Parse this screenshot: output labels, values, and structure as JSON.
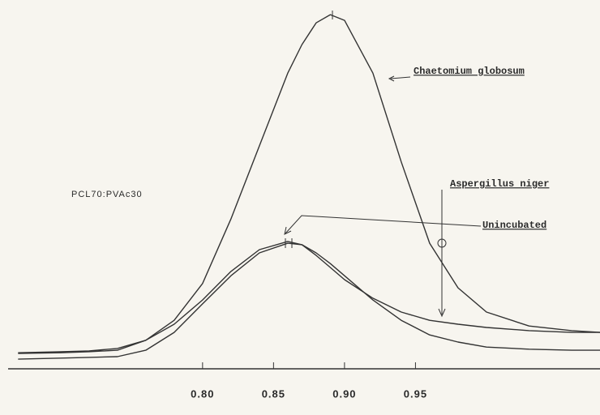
{
  "chart_data": {
    "type": "line",
    "annotation": "PCL70:PVAc30",
    "x": [
      0.67,
      0.7,
      0.72,
      0.74,
      0.76,
      0.78,
      0.8,
      0.82,
      0.84,
      0.86,
      0.87,
      0.88,
      0.89,
      0.9,
      0.92,
      0.94,
      0.96,
      0.98,
      1.0,
      1.03,
      1.06,
      1.08
    ],
    "series": [
      {
        "name": "Chaetomium  globosum",
        "color": "#333333",
        "values": [
          4.5,
          4.8,
          5.0,
          5.7,
          8.0,
          13.6,
          23.9,
          42.0,
          62.5,
          82.9,
          90.9,
          97.0,
          99.3,
          97.7,
          82.9,
          58.0,
          35.2,
          22.7,
          15.9,
          12.0,
          10.7,
          10.2
        ]
      },
      {
        "name": "Aspergillus  niger",
        "color": "#333333",
        "values": [
          4.3,
          4.5,
          4.8,
          5.2,
          8.0,
          12.5,
          19.3,
          27.3,
          33.4,
          35.7,
          34.8,
          31.8,
          28.4,
          25.0,
          19.8,
          15.9,
          13.6,
          12.5,
          11.6,
          10.7,
          10.2,
          10.2
        ]
      },
      {
        "name": "Unincubated",
        "color": "#333333",
        "values": [
          2.7,
          3.0,
          3.2,
          3.4,
          5.2,
          10.2,
          18.2,
          26.1,
          32.5,
          35.2,
          34.8,
          32.5,
          29.5,
          26.1,
          19.3,
          13.6,
          9.5,
          7.5,
          6.1,
          5.5,
          5.2,
          5.2
        ]
      }
    ],
    "xlim": [
      0.663,
      1.08
    ],
    "xticks": [
      {
        "value": 0.8,
        "label": "0.80"
      },
      0.85,
      {
        "value": 0.9,
        "label": "0.90"
      },
      0.95
    ],
    "ylim": [
      0,
      100
    ]
  }
}
